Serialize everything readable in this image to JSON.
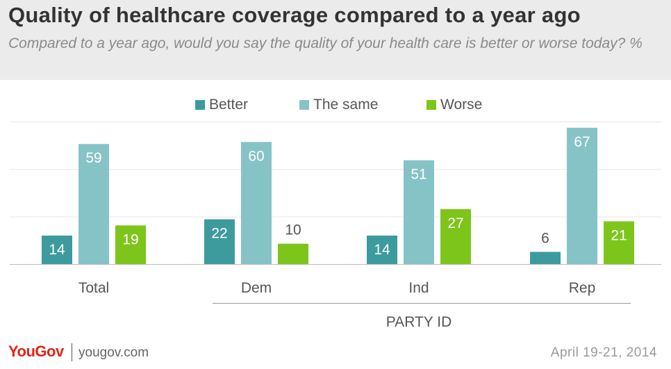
{
  "header": {
    "title": "Quality of healthcare coverage compared to a year ago",
    "subtitle": "Compared to a year ago, would you say the quality of your health care is better or worse today? %"
  },
  "chart_data": {
    "type": "bar",
    "categories": [
      "Total",
      "Dem",
      "Ind",
      "Rep"
    ],
    "series": [
      {
        "name": "Better",
        "color": "#3d9b9e",
        "values": [
          14,
          22,
          14,
          6
        ]
      },
      {
        "name": "The same",
        "color": "#86c3c6",
        "values": [
          59,
          60,
          51,
          67
        ]
      },
      {
        "name": "Worse",
        "color": "#7ec51b",
        "values": [
          19,
          10,
          27,
          21
        ]
      }
    ],
    "group_label": "PARTY ID",
    "ylim": [
      0,
      70
    ],
    "grid": true,
    "legend_position": "top"
  },
  "footer": {
    "logo": "YouGov",
    "site": "yougov.com",
    "date": "April 19-21, 2014"
  }
}
